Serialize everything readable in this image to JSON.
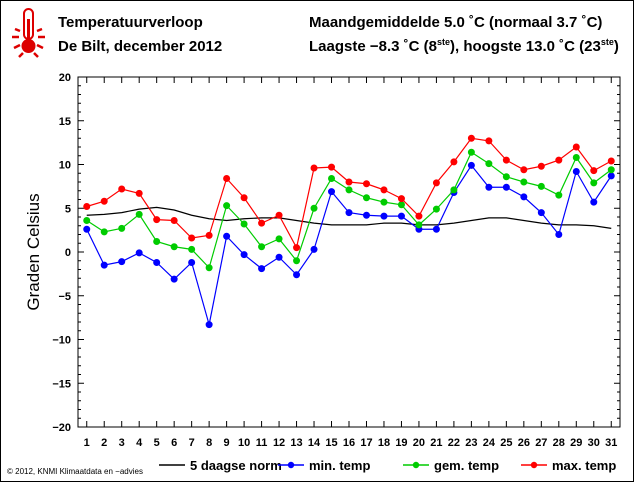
{
  "header": {
    "title": "Temperatuurverloop",
    "subtitle": "De Bilt, december 2012",
    "summary_line1": "Maandgemiddelde 5.0 ˚C (normaal 3.7 ˚C)",
    "summary_line2_prefix": "Laagste −8.3 ˚C (8",
    "summary_line2_sup1": "ste",
    "summary_line2_mid": "), hoogste 13.0 ˚C (23",
    "summary_line2_sup2": "ste",
    "summary_line2_suffix": ")",
    "icon": "thermometer-icon"
  },
  "footer": {
    "copyright": "© 2012, KNMI Klimaatdata en −advies"
  },
  "chart_data": {
    "type": "line",
    "ylabel": "Graden Celsius",
    "xlabel": "",
    "ylim": [
      -20,
      20
    ],
    "xlim": [
      0.5,
      31.5
    ],
    "y_ticks": [
      20,
      15,
      10,
      5,
      0,
      -5,
      -10,
      -15,
      -20
    ],
    "y_tick_labels": [
      "20",
      "15",
      "10",
      "5",
      "0",
      "−5",
      "−10",
      "−15",
      "−20"
    ],
    "categories": [
      1,
      2,
      3,
      4,
      5,
      6,
      7,
      8,
      9,
      10,
      11,
      12,
      13,
      14,
      15,
      16,
      17,
      18,
      19,
      20,
      21,
      22,
      23,
      24,
      25,
      26,
      27,
      28,
      29,
      30,
      31
    ],
    "grid": false,
    "legend_position": "bottom",
    "series": [
      {
        "name": "5 daagse norm",
        "color": "#000000",
        "marker": false,
        "values": [
          4.2,
          4.3,
          4.5,
          4.9,
          5.1,
          4.8,
          4.2,
          3.8,
          3.6,
          3.8,
          3.9,
          3.9,
          3.6,
          3.3,
          3.1,
          3.1,
          3.1,
          3.3,
          3.3,
          3.1,
          3.1,
          3.3,
          3.6,
          3.9,
          3.9,
          3.6,
          3.3,
          3.1,
          3.1,
          3.0,
          2.7
        ]
      },
      {
        "name": "min. temp",
        "color": "#0000ff",
        "marker": true,
        "values": [
          2.6,
          -1.5,
          -1.1,
          -0.1,
          -1.2,
          -3.1,
          -1.2,
          -8.3,
          1.8,
          -0.3,
          -1.9,
          -0.6,
          -2.6,
          0.3,
          6.9,
          4.5,
          4.2,
          4.1,
          4.1,
          2.6,
          2.6,
          6.8,
          9.9,
          7.4,
          7.4,
          6.3,
          4.5,
          2.0,
          9.2,
          5.7,
          8.7
        ]
      },
      {
        "name": "gem. temp",
        "color": "#00cc00",
        "marker": true,
        "values": [
          3.6,
          2.3,
          2.7,
          4.3,
          1.2,
          0.6,
          0.3,
          -1.8,
          5.3,
          3.2,
          0.6,
          1.5,
          -1.0,
          5.0,
          8.4,
          7.1,
          6.2,
          5.7,
          5.4,
          3.1,
          4.9,
          7.1,
          11.4,
          10.1,
          8.6,
          8.0,
          7.5,
          6.5,
          10.8,
          7.9,
          9.4
        ]
      },
      {
        "name": "max. temp",
        "color": "#ff0000",
        "marker": true,
        "values": [
          5.2,
          5.8,
          7.2,
          6.7,
          3.7,
          3.6,
          1.6,
          1.9,
          8.4,
          6.2,
          3.3,
          4.2,
          0.5,
          9.6,
          9.7,
          8.0,
          7.8,
          7.1,
          6.1,
          4.1,
          7.9,
          10.3,
          13.0,
          12.7,
          10.5,
          9.4,
          9.8,
          10.5,
          12.0,
          9.3,
          10.4
        ]
      }
    ]
  }
}
